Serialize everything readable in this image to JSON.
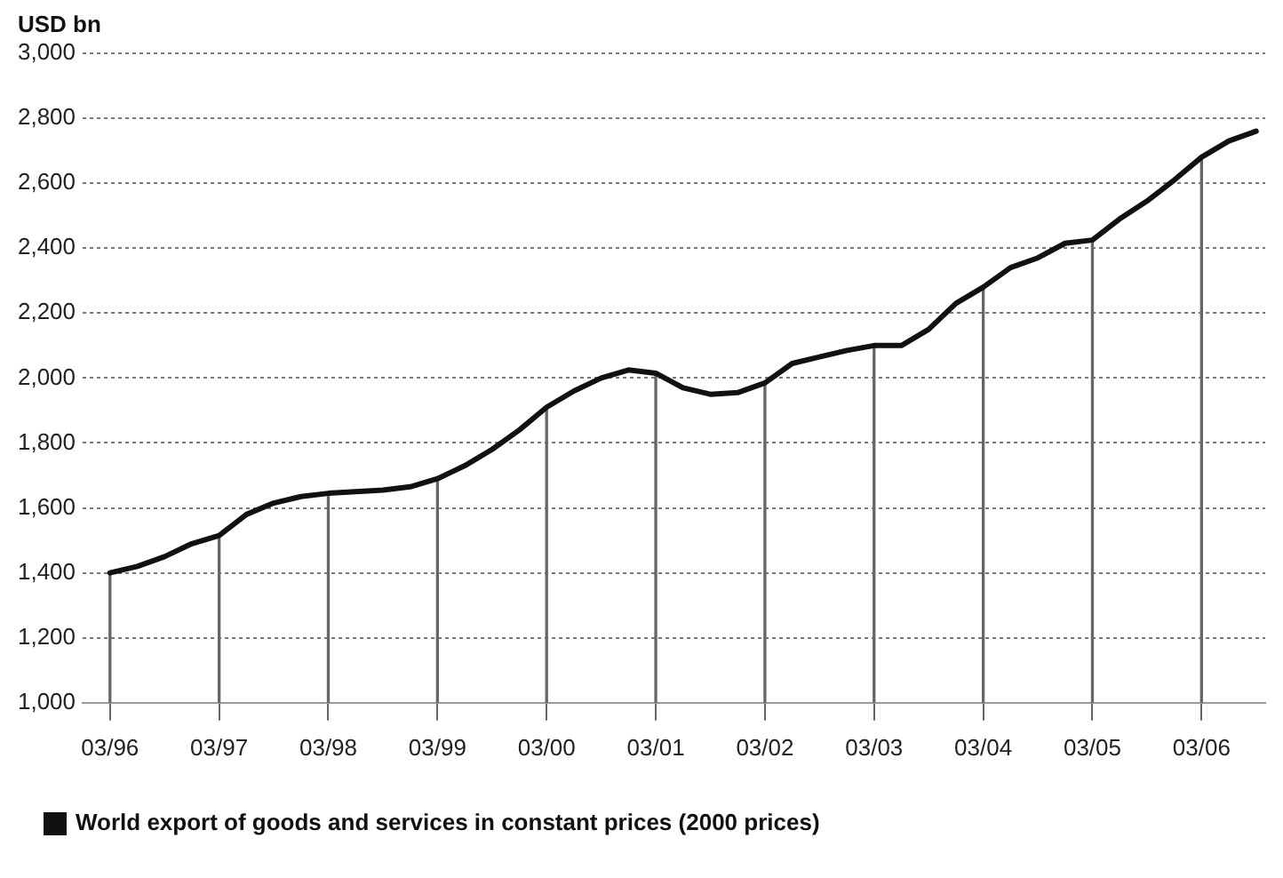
{
  "chart_data": {
    "type": "line",
    "ylabel": "USD bn",
    "x": [
      "1996-03",
      "1996-06",
      "1996-09",
      "1996-12",
      "1997-03",
      "1997-06",
      "1997-09",
      "1997-12",
      "1998-03",
      "1998-06",
      "1998-09",
      "1998-12",
      "1999-03",
      "1999-06",
      "1999-09",
      "1999-12",
      "2000-03",
      "2000-06",
      "2000-09",
      "2000-12",
      "2001-03",
      "2001-06",
      "2001-09",
      "2001-12",
      "2002-03",
      "2002-06",
      "2002-09",
      "2002-12",
      "2003-03",
      "2003-06",
      "2003-09",
      "2003-12",
      "2004-03",
      "2004-06",
      "2004-09",
      "2004-12",
      "2005-03",
      "2005-06",
      "2005-09",
      "2005-12",
      "2006-03",
      "2006-06",
      "2006-09"
    ],
    "series": [
      {
        "name": "World export of goods and services in constant prices (2000 prices)",
        "color": "#111111",
        "values": [
          1400,
          1420,
          1450,
          1490,
          1515,
          1580,
          1615,
          1635,
          1645,
          1650,
          1655,
          1665,
          1690,
          1730,
          1780,
          1840,
          1910,
          1960,
          2000,
          2025,
          2015,
          1970,
          1950,
          1955,
          1985,
          2045,
          2065,
          2085,
          2100,
          2100,
          2150,
          2230,
          2280,
          2340,
          2370,
          2415,
          2425,
          2490,
          2545,
          2610,
          2680,
          2730,
          2760
        ]
      },
      {
        "type": "bar",
        "color": "#666666",
        "x": [
          "1996-03",
          "1997-03",
          "1998-03",
          "1999-03",
          "2000-03",
          "2001-03",
          "2002-03",
          "2003-03",
          "2004-03",
          "2005-03",
          "2006-03"
        ],
        "values": [
          1400,
          1515,
          1645,
          1690,
          1910,
          2015,
          1985,
          2100,
          2280,
          2425,
          2680
        ]
      }
    ],
    "xlim": [
      "1995-12",
      "2006-10"
    ],
    "xticks": [
      {
        "value": "1996-03",
        "label": "03/96"
      },
      {
        "value": "1997-03",
        "label": "03/97"
      },
      {
        "value": "1998-03",
        "label": "03/98"
      },
      {
        "value": "1999-03",
        "label": "03/99"
      },
      {
        "value": "2000-03",
        "label": "03/00"
      },
      {
        "value": "2001-03",
        "label": "03/01"
      },
      {
        "value": "2002-03",
        "label": "03/02"
      },
      {
        "value": "2003-03",
        "label": "03/03"
      },
      {
        "value": "2004-03",
        "label": "03/04"
      },
      {
        "value": "2005-03",
        "label": "03/05"
      },
      {
        "value": "2006-03",
        "label": "03/06"
      }
    ],
    "ylim": [
      1000,
      3000
    ],
    "yticks": [
      {
        "value": 1000,
        "label": "1,000"
      },
      {
        "value": 1200,
        "label": "1,200"
      },
      {
        "value": 1400,
        "label": "1,400"
      },
      {
        "value": 1600,
        "label": "1,600"
      },
      {
        "value": 1800,
        "label": "1,800"
      },
      {
        "value": 2000,
        "label": "2,000"
      },
      {
        "value": 2200,
        "label": "2,200"
      },
      {
        "value": 2400,
        "label": "2,400"
      },
      {
        "value": 2600,
        "label": "2,600"
      },
      {
        "value": 2800,
        "label": "2,800"
      },
      {
        "value": 3000,
        "label": "3,000"
      }
    ],
    "grid": "y",
    "legend": "bottom",
    "marker": "none",
    "line_style": "solid"
  }
}
